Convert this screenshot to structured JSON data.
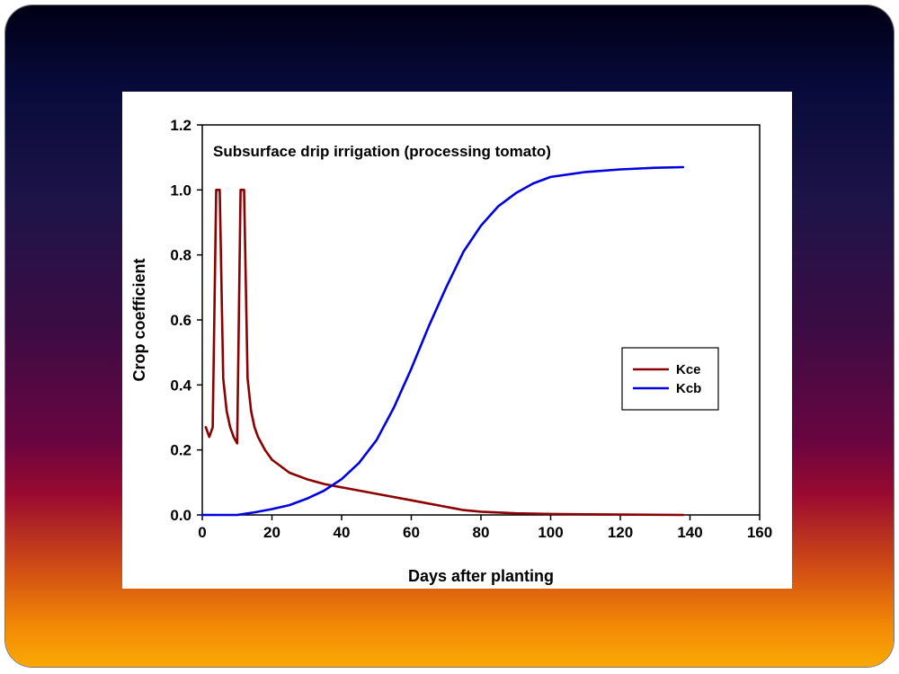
{
  "chart_data": {
    "type": "line",
    "title": "Subsurface drip irrigation (processing tomato)",
    "xlabel": "Days after planting",
    "ylabel": "Crop coefficient",
    "xlim": [
      0,
      160
    ],
    "ylim": [
      0,
      1.2
    ],
    "xticks": [
      "0",
      "20",
      "40",
      "60",
      "80",
      "100",
      "120",
      "140",
      "160"
    ],
    "yticks": [
      "0.0",
      "0.2",
      "0.4",
      "0.6",
      "0.8",
      "1.0",
      "1.2"
    ],
    "grid": false,
    "legend_position": "right",
    "series": [
      {
        "name": "Kce",
        "color": "#8b0000",
        "x": [
          1,
          2,
          3,
          4,
          5,
          6,
          7,
          8,
          9,
          10,
          11,
          12,
          13,
          14,
          15,
          16,
          18,
          20,
          25,
          30,
          35,
          40,
          50,
          60,
          70,
          75,
          80,
          90,
          100,
          110,
          120,
          138
        ],
        "y": [
          0.27,
          0.24,
          0.27,
          1.0,
          1.0,
          0.42,
          0.32,
          0.27,
          0.24,
          0.22,
          1.0,
          1.0,
          0.42,
          0.32,
          0.27,
          0.24,
          0.2,
          0.17,
          0.13,
          0.11,
          0.095,
          0.085,
          0.065,
          0.045,
          0.025,
          0.015,
          0.01,
          0.005,
          0.003,
          0.002,
          0.001,
          0.0
        ]
      },
      {
        "name": "Kcb",
        "color": "#0000e0",
        "x": [
          0,
          5,
          10,
          15,
          20,
          25,
          30,
          35,
          40,
          45,
          50,
          55,
          60,
          65,
          70,
          75,
          80,
          85,
          90,
          95,
          100,
          110,
          120,
          130,
          138
        ],
        "y": [
          0.0,
          0.0,
          0.0,
          0.008,
          0.018,
          0.03,
          0.05,
          0.075,
          0.11,
          0.16,
          0.23,
          0.33,
          0.45,
          0.58,
          0.7,
          0.81,
          0.89,
          0.95,
          0.99,
          1.02,
          1.04,
          1.055,
          1.063,
          1.068,
          1.07
        ]
      }
    ]
  }
}
